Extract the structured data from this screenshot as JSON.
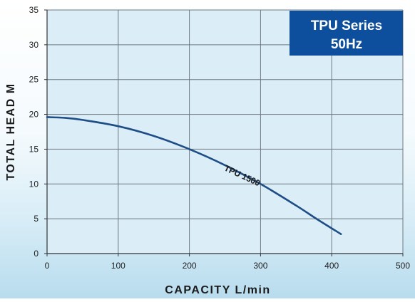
{
  "badge": {
    "line1": "TPU Series",
    "line2": "50Hz"
  },
  "colors": {
    "plot_bg": "#dbeef8",
    "grid": "#6e7880",
    "curve": "#1f4e86",
    "badge_bg": "#0d4f9c"
  },
  "chart_data": {
    "type": "line",
    "xlabel": "CAPACITY L/min",
    "ylabel": "TOTAL HEAD M",
    "xlim": [
      0,
      500
    ],
    "ylim": [
      0,
      35
    ],
    "xticks": [
      0,
      100,
      200,
      300,
      400,
      500
    ],
    "yticks": [
      0,
      5,
      10,
      15,
      20,
      25,
      30,
      35
    ],
    "grid": true,
    "series": [
      {
        "name": "TPU 1500",
        "x": [
          0,
          25,
          50,
          100,
          150,
          200,
          250,
          300,
          350,
          380,
          413
        ],
        "y": [
          19.6,
          19.5,
          19.2,
          18.3,
          16.9,
          15.0,
          12.7,
          10.0,
          6.9,
          4.9,
          2.8
        ]
      }
    ]
  }
}
